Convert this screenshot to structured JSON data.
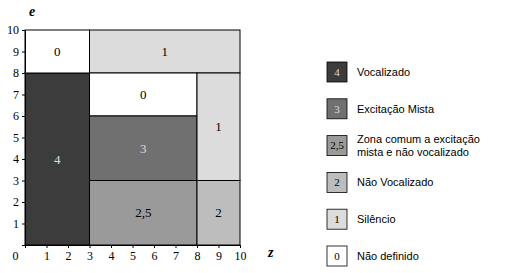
{
  "chart_data": {
    "type": "heatmap",
    "x_label": "z",
    "y_label": "e",
    "xlim": [
      0,
      10
    ],
    "ylim": [
      0,
      10
    ],
    "xticks": [
      0,
      1,
      2,
      3,
      4,
      5,
      6,
      7,
      8,
      9,
      10
    ],
    "yticks": [
      1,
      2,
      3,
      4,
      5,
      6,
      7,
      8,
      9,
      10
    ],
    "cells": [
      {
        "z": [
          0,
          3
        ],
        "e": [
          0,
          8
        ],
        "value": 4,
        "label": "4"
      },
      {
        "z": [
          0,
          3
        ],
        "e": [
          8,
          10
        ],
        "value": 0,
        "label": "0"
      },
      {
        "z": [
          3,
          10
        ],
        "e": [
          8,
          10
        ],
        "value": 1,
        "label": "1"
      },
      {
        "z": [
          3,
          8
        ],
        "e": [
          6,
          8
        ],
        "value": 0,
        "label": "0"
      },
      {
        "z": [
          3,
          8
        ],
        "e": [
          3,
          6
        ],
        "value": 3,
        "label": "3"
      },
      {
        "z": [
          3,
          8
        ],
        "e": [
          0,
          3
        ],
        "value": 2.5,
        "label": "2,5"
      },
      {
        "z": [
          8,
          10
        ],
        "e": [
          3,
          8
        ],
        "value": 1,
        "label": "1"
      },
      {
        "z": [
          8,
          10
        ],
        "e": [
          0,
          3
        ],
        "value": 2,
        "label": "2"
      }
    ],
    "classes": [
      {
        "value": 4,
        "value_label": "4",
        "name": "Vocalizado",
        "color": "#3c3c3c"
      },
      {
        "value": 3,
        "value_label": "3",
        "name": "Excitação Mista",
        "color": "#707070"
      },
      {
        "value": 2.5,
        "value_label": "2,5",
        "name": "Zona comum a excitação mista e não vocalizado",
        "color": "#9a9a9a"
      },
      {
        "value": 2,
        "value_label": "2",
        "name": "Não Vocalizado",
        "color": "#bdbdbd"
      },
      {
        "value": 1,
        "value_label": "1",
        "name": "Silêncio",
        "color": "#dcdcdc"
      },
      {
        "value": 0,
        "value_label": "0",
        "name": "Não definido",
        "color": "#ffffff"
      }
    ]
  }
}
